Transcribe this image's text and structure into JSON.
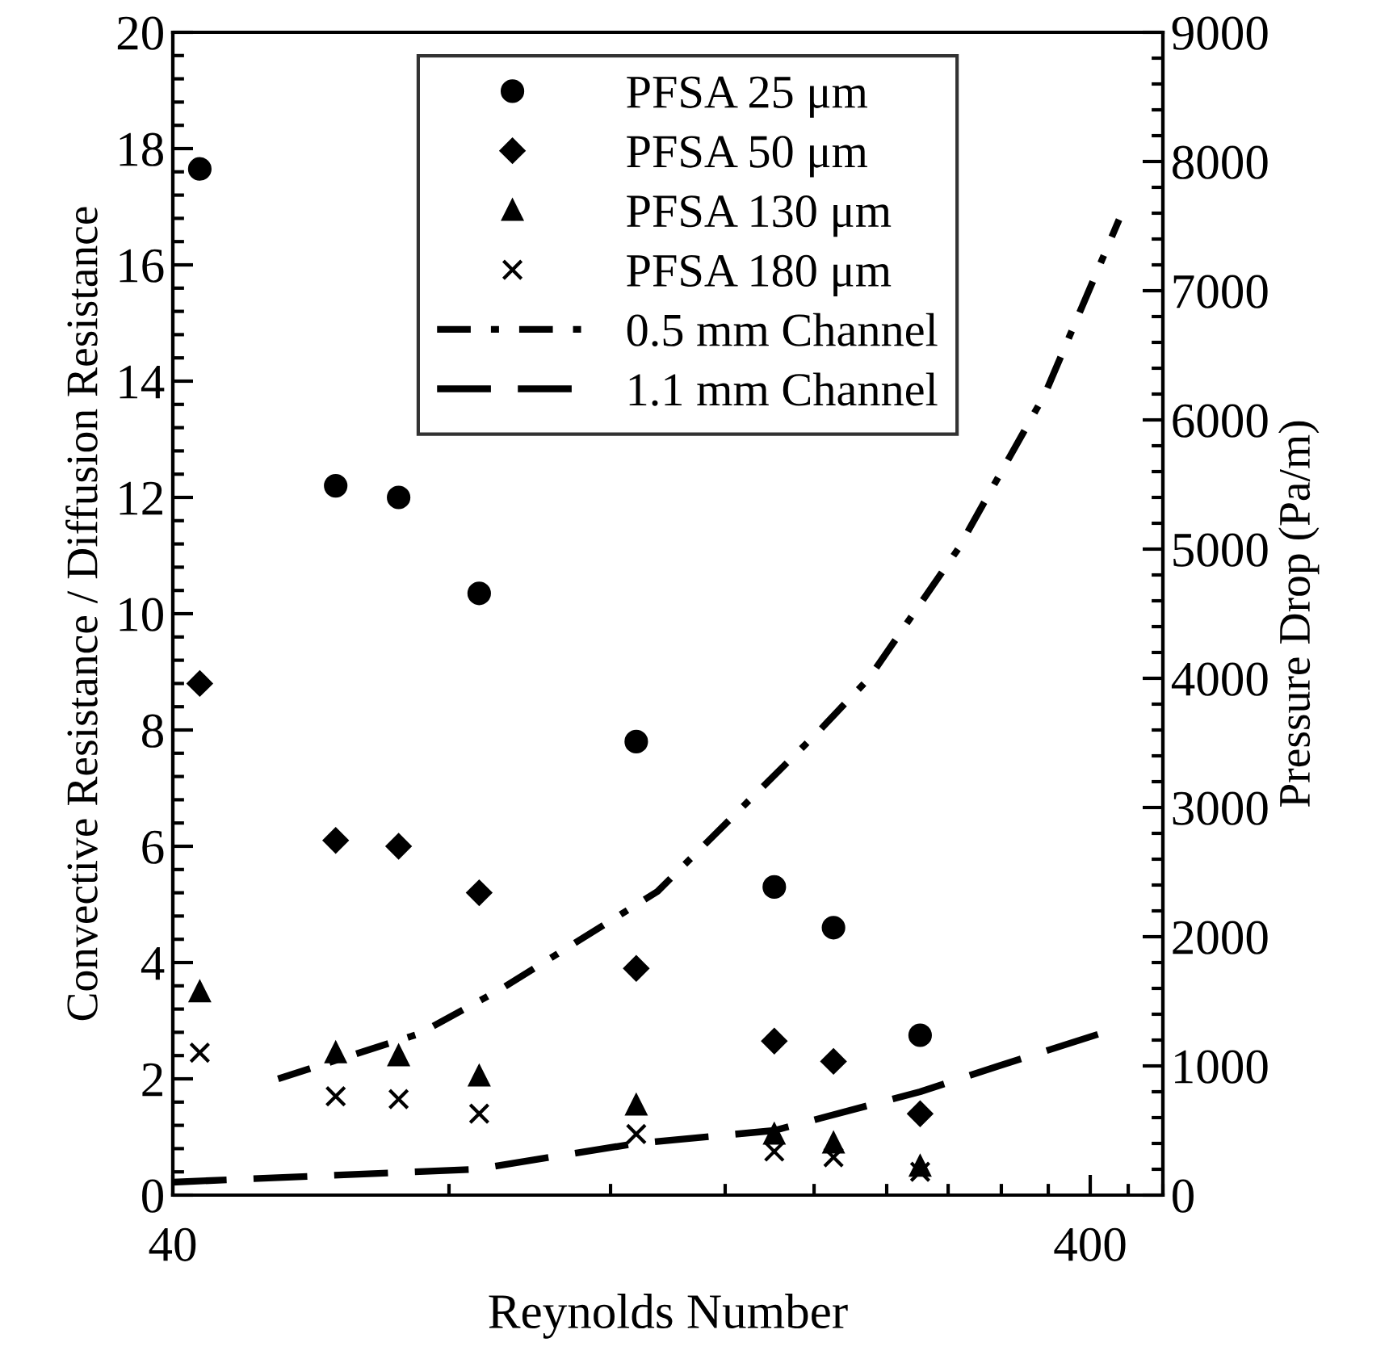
{
  "chart_data": {
    "type": "scatter",
    "xlabel": "Reynolds Number",
    "ylabel": "Convective Resistance / Diffusion Resistance",
    "y2label": "Pressure Drop (Pa/m)",
    "log": "x",
    "xlim": [
      40,
      480
    ],
    "xticks": [
      40,
      400
    ],
    "ylim": [
      0,
      20
    ],
    "yticks": [
      0,
      2,
      4,
      6,
      8,
      10,
      12,
      14,
      16,
      18,
      20
    ],
    "y2lim": [
      0,
      9000
    ],
    "y2ticks": [
      0,
      1000,
      2000,
      3000,
      4000,
      5000,
      6000,
      7000,
      8000,
      9000
    ],
    "grid": false,
    "legend": "top",
    "x": [
      42.8,
      60.2,
      70.5,
      86.3,
      128,
      181,
      210,
      261
    ],
    "series": [
      {
        "name": "PFSA 25 μm",
        "color": "#000000",
        "marker": "circle",
        "values": [
          17.65,
          12.2,
          12.0,
          10.35,
          7.8,
          5.3,
          4.6,
          2.75
        ]
      },
      {
        "name": "PFSA 50 μm",
        "color": "#000000",
        "marker": "diamond",
        "values": [
          8.8,
          6.1,
          6.0,
          5.2,
          3.9,
          2.65,
          2.3,
          1.4
        ]
      },
      {
        "name": "PFSA 130 μm",
        "color": "#000000",
        "marker": "triangle",
        "values": [
          3.5,
          2.45,
          2.4,
          2.05,
          1.55,
          1.05,
          0.9,
          0.5
        ]
      },
      {
        "name": "PFSA 180 μm",
        "color": "#000000",
        "marker": "cross",
        "values": [
          2.45,
          1.7,
          1.65,
          1.4,
          1.05,
          0.75,
          0.65,
          0.4
        ]
      },
      {
        "name": "0.5 mm Channel",
        "type": "line",
        "axis": "y2",
        "color": "#000000",
        "line_style": "dashdot",
        "x": [
          52.1,
          74.3,
          91.4,
          135,
          203,
          229.5,
          287,
          357,
          430
        ],
        "values": [
          900,
          1250,
          1600,
          2350,
          3600,
          4000,
          5000,
          6200,
          7550
        ]
      },
      {
        "name": "1.1 mm Channel",
        "type": "line",
        "axis": "y2",
        "color": "#000000",
        "line_style": "dashed",
        "x": [
          40,
          58.2,
          85.5,
          128,
          181,
          261,
          318,
          410
        ],
        "values": [
          100,
          150,
          200,
          400,
          500,
          800,
          1000,
          1250
        ]
      }
    ]
  }
}
